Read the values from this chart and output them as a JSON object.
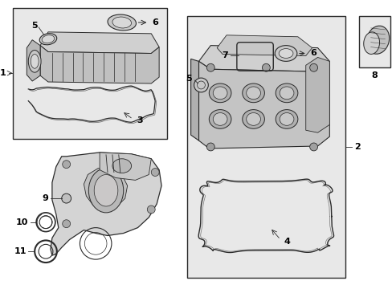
{
  "bg": "#ffffff",
  "box_bg": "#e8e8e8",
  "lc": "#2a2a2a",
  "part_fill": "#d8d8d8",
  "part_dark": "#aaaaaa",
  "fig_w": 4.89,
  "fig_h": 3.6,
  "dpi": 100
}
